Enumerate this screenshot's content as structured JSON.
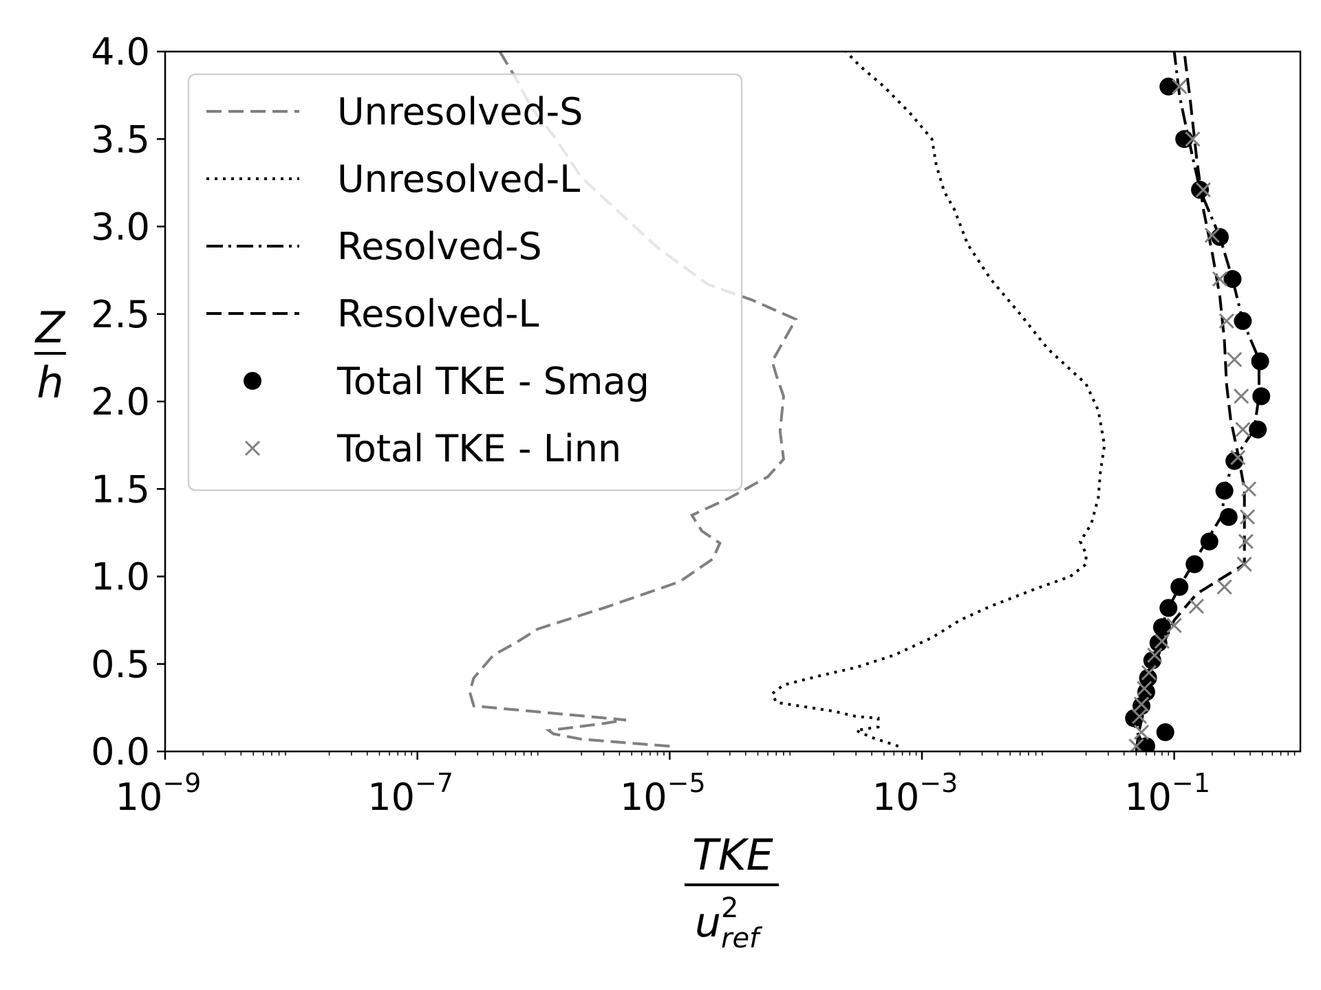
{
  "chart_data": {
    "type": "line",
    "title": "",
    "xlabel": {
      "numerator": "TKE",
      "denominator_base": "u",
      "denominator_sup": "2",
      "denominator_sub": "ref"
    },
    "ylabel": {
      "numerator": "Z",
      "denominator": "h"
    },
    "xscale": "log",
    "xlim": [
      1e-09,
      1
    ],
    "ylim": [
      0,
      4
    ],
    "xticks": [
      {
        "value": 1e-09,
        "base": "10",
        "exp": "−9"
      },
      {
        "value": 1e-07,
        "base": "10",
        "exp": "−7"
      },
      {
        "value": 1e-05,
        "base": "10",
        "exp": "−5"
      },
      {
        "value": 0.001,
        "base": "10",
        "exp": "−3"
      },
      {
        "value": 0.1,
        "base": "10",
        "exp": "−1"
      }
    ],
    "yticks": [
      {
        "value": 0.0,
        "label": "0.0"
      },
      {
        "value": 0.5,
        "label": "0.5"
      },
      {
        "value": 1.0,
        "label": "1.0"
      },
      {
        "value": 1.5,
        "label": "1.5"
      },
      {
        "value": 2.0,
        "label": "2.0"
      },
      {
        "value": 2.5,
        "label": "2.5"
      },
      {
        "value": 3.0,
        "label": "3.0"
      },
      {
        "value": 3.5,
        "label": "3.5"
      },
      {
        "value": 4.0,
        "label": "4.0"
      }
    ],
    "grid": false,
    "legend_position": "upper-left",
    "series": [
      {
        "name": "Unresolved-S",
        "style": "line",
        "dash": "dashed",
        "color": "#808080",
        "points": [
          [
            1e-05,
            0.03
          ],
          [
            2e-06,
            0.07
          ],
          [
            1.2e-06,
            0.1
          ],
          [
            1.1e-06,
            0.12
          ],
          [
            3e-06,
            0.16
          ],
          [
            4.5e-06,
            0.18
          ],
          [
            2.8e-07,
            0.26
          ],
          [
            2.6e-07,
            0.34
          ],
          [
            2.8e-07,
            0.42
          ],
          [
            4e-07,
            0.55
          ],
          [
            6e-07,
            0.62
          ],
          [
            9e-07,
            0.7
          ],
          [
            3e-06,
            0.82
          ],
          [
            1.2e-05,
            0.97
          ],
          [
            2.2e-05,
            1.1
          ],
          [
            2.5e-05,
            1.19
          ],
          [
            1.8e-05,
            1.26
          ],
          [
            1.5e-05,
            1.35
          ],
          [
            3e-05,
            1.45
          ],
          [
            6e-05,
            1.57
          ],
          [
            8e-05,
            1.67
          ],
          [
            7.5e-05,
            1.83
          ],
          [
            8e-05,
            2.03
          ],
          [
            7e-05,
            2.15
          ],
          [
            6.5e-05,
            2.23
          ],
          [
            0.0001,
            2.47
          ],
          [
            4.5e-05,
            2.58
          ],
          [
            2e-05,
            2.67
          ],
          [
            8e-06,
            2.88
          ],
          [
            4e-06,
            3.08
          ],
          [
            2e-06,
            3.28
          ],
          [
            1.2e-06,
            3.52
          ],
          [
            8e-07,
            3.68
          ],
          [
            6e-07,
            3.85
          ],
          [
            4.5e-07,
            4.0
          ]
        ]
      },
      {
        "name": "Unresolved-L",
        "style": "line",
        "dash": "dotted",
        "color": "#000000",
        "points": [
          [
            0.00065,
            0.03
          ],
          [
            0.0004,
            0.08
          ],
          [
            0.0003,
            0.12
          ],
          [
            0.00045,
            0.14
          ],
          [
            0.00045,
            0.19
          ],
          [
            0.0003,
            0.2
          ],
          [
            0.0002,
            0.23
          ],
          [
            7e-05,
            0.28
          ],
          [
            6.5e-05,
            0.33
          ],
          [
            8e-05,
            0.38
          ],
          [
            0.00015,
            0.43
          ],
          [
            0.0003,
            0.48
          ],
          [
            0.0006,
            0.55
          ],
          [
            0.0012,
            0.65
          ],
          [
            0.002,
            0.75
          ],
          [
            0.0035,
            0.83
          ],
          [
            0.008,
            0.93
          ],
          [
            0.015,
            1.0
          ],
          [
            0.02,
            1.07
          ],
          [
            0.02,
            1.13
          ],
          [
            0.018,
            1.2
          ],
          [
            0.022,
            1.3
          ],
          [
            0.025,
            1.45
          ],
          [
            0.026,
            1.6
          ],
          [
            0.028,
            1.75
          ],
          [
            0.025,
            1.95
          ],
          [
            0.02,
            2.1
          ],
          [
            0.01,
            2.3
          ],
          [
            0.006,
            2.5
          ],
          [
            0.0035,
            2.7
          ],
          [
            0.0023,
            2.9
          ],
          [
            0.0018,
            3.1
          ],
          [
            0.0015,
            3.2
          ],
          [
            0.0013,
            3.35
          ],
          [
            0.0012,
            3.5
          ],
          [
            0.0008,
            3.65
          ],
          [
            0.0005,
            3.8
          ],
          [
            0.00032,
            3.92
          ],
          [
            0.00025,
            4.0
          ]
        ]
      },
      {
        "name": "Resolved-S",
        "style": "line",
        "dash": "dashdot",
        "color": "#000000",
        "points": [
          [
            0.058,
            0.02
          ],
          [
            0.055,
            0.06
          ],
          [
            0.05,
            0.12
          ],
          [
            0.048,
            0.18
          ],
          [
            0.055,
            0.27
          ],
          [
            0.058,
            0.35
          ],
          [
            0.062,
            0.44
          ],
          [
            0.068,
            0.53
          ],
          [
            0.075,
            0.62
          ],
          [
            0.08,
            0.72
          ],
          [
            0.09,
            0.82
          ],
          [
            0.11,
            0.94
          ],
          [
            0.14,
            1.07
          ],
          [
            0.18,
            1.2
          ],
          [
            0.24,
            1.35
          ],
          [
            0.25,
            1.5
          ],
          [
            0.3,
            1.67
          ],
          [
            0.43,
            1.84
          ],
          [
            0.47,
            2.03
          ],
          [
            0.47,
            2.24
          ],
          [
            0.35,
            2.46
          ],
          [
            0.29,
            2.7
          ],
          [
            0.23,
            2.94
          ],
          [
            0.16,
            3.21
          ],
          [
            0.13,
            3.5
          ],
          [
            0.11,
            3.75
          ],
          [
            0.1,
            4.0
          ]
        ]
      },
      {
        "name": "Resolved-L",
        "style": "line",
        "dash": "dashed",
        "color": "#000000",
        "points": [
          [
            0.05,
            0.0
          ],
          [
            0.052,
            0.1
          ],
          [
            0.056,
            0.2
          ],
          [
            0.058,
            0.3
          ],
          [
            0.065,
            0.45
          ],
          [
            0.08,
            0.6
          ],
          [
            0.1,
            0.75
          ],
          [
            0.15,
            0.9
          ],
          [
            0.36,
            1.07
          ],
          [
            0.36,
            1.3
          ],
          [
            0.36,
            1.5
          ],
          [
            0.32,
            1.7
          ],
          [
            0.28,
            1.9
          ],
          [
            0.26,
            2.1
          ],
          [
            0.25,
            2.35
          ],
          [
            0.23,
            2.6
          ],
          [
            0.2,
            2.85
          ],
          [
            0.17,
            3.1
          ],
          [
            0.15,
            3.4
          ],
          [
            0.135,
            3.7
          ],
          [
            0.12,
            4.0
          ]
        ]
      },
      {
        "name": "Total TKE - Smag",
        "style": "marker",
        "marker": "circle",
        "color": "#000000",
        "points": [
          [
            0.06,
            0.03
          ],
          [
            0.085,
            0.11
          ],
          [
            0.048,
            0.19
          ],
          [
            0.055,
            0.26
          ],
          [
            0.06,
            0.34
          ],
          [
            0.062,
            0.42
          ],
          [
            0.067,
            0.52
          ],
          [
            0.075,
            0.62
          ],
          [
            0.08,
            0.71
          ],
          [
            0.09,
            0.82
          ],
          [
            0.11,
            0.94
          ],
          [
            0.145,
            1.07
          ],
          [
            0.19,
            1.2
          ],
          [
            0.27,
            1.34
          ],
          [
            0.25,
            1.49
          ],
          [
            0.3,
            1.66
          ],
          [
            0.46,
            1.84
          ],
          [
            0.49,
            2.03
          ],
          [
            0.48,
            2.23
          ],
          [
            0.35,
            2.46
          ],
          [
            0.29,
            2.7
          ],
          [
            0.23,
            2.94
          ],
          [
            0.16,
            3.21
          ],
          [
            0.12,
            3.5
          ],
          [
            0.09,
            3.8
          ]
        ]
      },
      {
        "name": "Total TKE - Linn",
        "style": "marker",
        "marker": "x",
        "color": "#808080",
        "points": [
          [
            0.05,
            0.03
          ],
          [
            0.055,
            0.11
          ],
          [
            0.053,
            0.2
          ],
          [
            0.055,
            0.27
          ],
          [
            0.058,
            0.36
          ],
          [
            0.063,
            0.45
          ],
          [
            0.07,
            0.55
          ],
          [
            0.08,
            0.63
          ],
          [
            0.1,
            0.72
          ],
          [
            0.15,
            0.83
          ],
          [
            0.25,
            0.94
          ],
          [
            0.36,
            1.07
          ],
          [
            0.37,
            1.2
          ],
          [
            0.38,
            1.34
          ],
          [
            0.39,
            1.5
          ],
          [
            0.32,
            1.68
          ],
          [
            0.35,
            1.84
          ],
          [
            0.34,
            2.03
          ],
          [
            0.3,
            2.24
          ],
          [
            0.26,
            2.46
          ],
          [
            0.23,
            2.7
          ],
          [
            0.2,
            2.95
          ],
          [
            0.17,
            3.21
          ],
          [
            0.14,
            3.5
          ],
          [
            0.11,
            3.8
          ]
        ]
      }
    ]
  }
}
